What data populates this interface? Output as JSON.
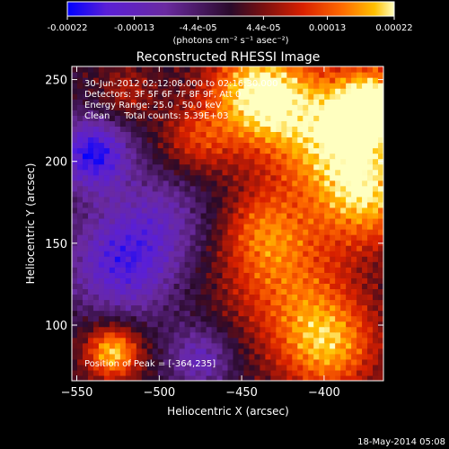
{
  "colorbar": {
    "tick_labels": [
      "-0.00022",
      "-0.00013",
      "-4.4e-05",
      "4.4e-05",
      "0.00013",
      "0.00022"
    ],
    "tick_values": [
      -0.00022,
      -0.00013,
      -4.4e-05,
      4.4e-05,
      0.00013,
      0.00022
    ],
    "range": [
      -0.00022,
      0.00022
    ],
    "units_label": "(photons cm⁻² s⁻¹ asec⁻²)",
    "colors": [
      "#0000ff",
      "#5a1fd6",
      "#6a2aa0",
      "#2a0a2a",
      "#7a1010",
      "#d82000",
      "#ff6a00",
      "#ffc000",
      "#ffffc0"
    ]
  },
  "chart_data": {
    "type": "heatmap",
    "title": "Reconstructed RHESSI Image",
    "xlabel": "Heliocentric X (arcsec)",
    "ylabel": "Heliocentric Y (arcsec)",
    "xlim": [
      -553,
      -364
    ],
    "ylim": [
      66,
      258
    ],
    "x_ticks": [
      -550,
      -500,
      -450,
      -400
    ],
    "x_tick_labels": [
      "−550",
      "−500",
      "−450",
      "−400"
    ],
    "y_ticks": [
      100,
      150,
      200,
      250
    ],
    "y_tick_labels": [
      "100",
      "150",
      "200",
      "250"
    ],
    "info_lines": [
      "30-Jun-2012 02:12:08.000 to 02:16:30.000",
      "Detectors: 3F 5F 6F 7F 8F 9F, Att 0",
      "Energy Range: 25.0 - 50.0 keV",
      "Clean     Total counts: 5.39E+03"
    ],
    "peak_label": "Position of Peak = [-364,235]",
    "peak": [
      -364,
      235
    ],
    "sources": [
      {
        "x": -440,
        "y": 242,
        "amp": 1.0,
        "sigma": 22
      },
      {
        "x": -395,
        "y": 215,
        "amp": 0.85,
        "sigma": 28
      },
      {
        "x": -372,
        "y": 178,
        "amp": 0.7,
        "sigma": 22
      },
      {
        "x": -425,
        "y": 130,
        "amp": 0.55,
        "sigma": 28
      },
      {
        "x": -398,
        "y": 88,
        "amp": 0.8,
        "sigma": 22
      },
      {
        "x": -370,
        "y": 235,
        "amp": 0.9,
        "sigma": 16
      },
      {
        "x": -528,
        "y": 84,
        "amp": 0.95,
        "sigma": 12
      },
      {
        "x": -478,
        "y": 212,
        "amp": 0.45,
        "sigma": 16
      },
      {
        "x": -520,
        "y": 242,
        "amp": 0.35,
        "sigma": 12
      },
      {
        "x": -438,
        "y": 160,
        "amp": 0.4,
        "sigma": 18
      },
      {
        "x": -540,
        "y": 205,
        "amp": -0.9,
        "sigma": 16
      },
      {
        "x": -522,
        "y": 138,
        "amp": -0.75,
        "sigma": 24
      },
      {
        "x": -475,
        "y": 80,
        "amp": -0.55,
        "sigma": 14
      },
      {
        "x": -495,
        "y": 170,
        "amp": -0.35,
        "sigma": 22
      }
    ]
  },
  "footer": {
    "date": "18-May-2014 05:08"
  }
}
